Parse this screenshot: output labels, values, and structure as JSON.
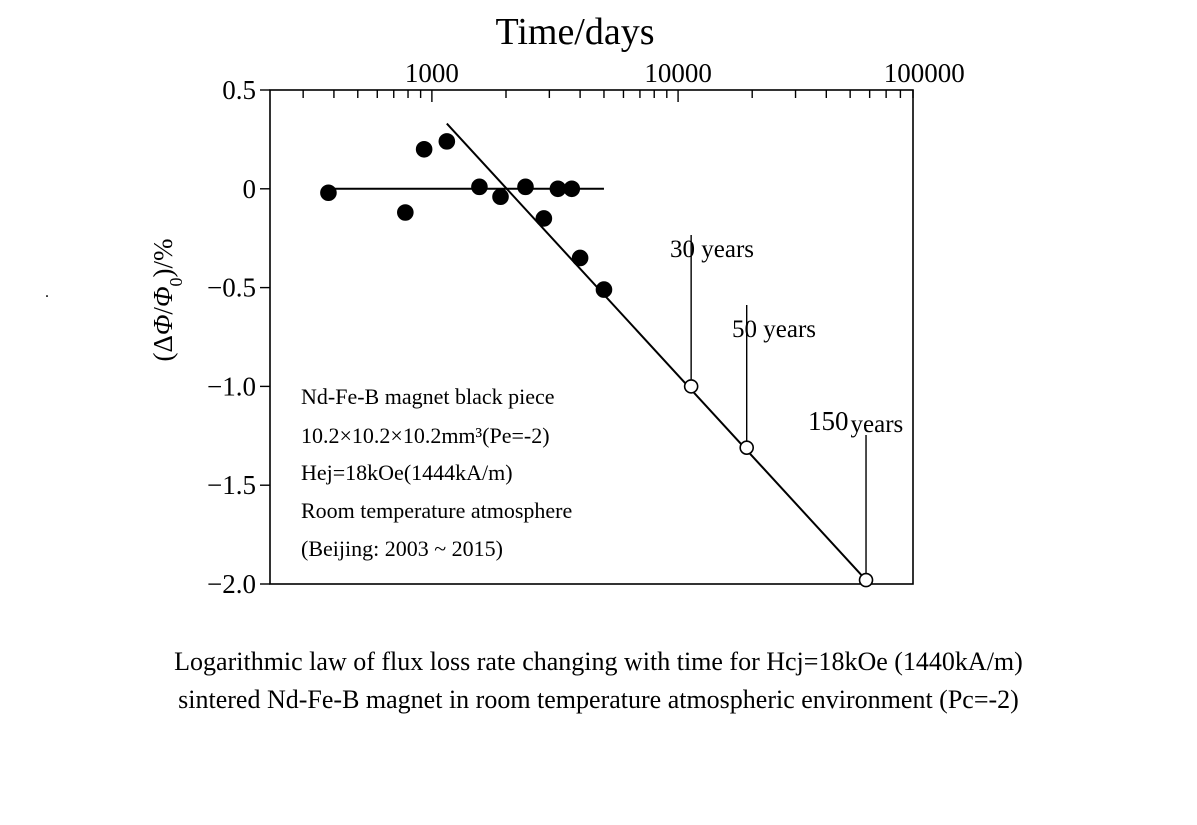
{
  "chart_data": {
    "type": "scatter",
    "title": "Time/days",
    "xlabel": "Time/days",
    "ylabel": "(ΔΦ/Φ0)/%",
    "xscale": "log",
    "xlim": [
      220,
      90000
    ],
    "ylim": [
      -2.0,
      0.5
    ],
    "x_ticks": [
      1000,
      10000,
      100000
    ],
    "x_tick_labels": [
      "1000",
      "10000",
      "100000"
    ],
    "y_ticks": [
      0.5,
      0,
      -0.5,
      -1.0,
      -1.5,
      -2.0
    ],
    "y_tick_labels": [
      "0.5",
      "0",
      "−0.5",
      "−1.0",
      "−1.5",
      "−2.0"
    ],
    "series": [
      {
        "name": "measured",
        "marker": "filled-circle",
        "points": [
          {
            "x": 380,
            "y": -0.02
          },
          {
            "x": 780,
            "y": -0.12
          },
          {
            "x": 930,
            "y": 0.2
          },
          {
            "x": 1150,
            "y": 0.24
          },
          {
            "x": 1560,
            "y": 0.01
          },
          {
            "x": 1900,
            "y": -0.04
          },
          {
            "x": 2400,
            "y": 0.01
          },
          {
            "x": 2850,
            "y": -0.15
          },
          {
            "x": 3250,
            "y": 0.0
          },
          {
            "x": 3700,
            "y": 0.0
          },
          {
            "x": 4000,
            "y": -0.35
          },
          {
            "x": 5000,
            "y": -0.51
          }
        ]
      },
      {
        "name": "predicted",
        "marker": "open-circle",
        "points": [
          {
            "x": 11300,
            "y": -1.0
          },
          {
            "x": 19000,
            "y": -1.31
          },
          {
            "x": 58000,
            "y": -1.98
          }
        ]
      }
    ],
    "lines": [
      {
        "name": "baseline",
        "x": [
          380,
          5000
        ],
        "y": [
          0.0,
          0.0
        ]
      },
      {
        "name": "trend",
        "x": [
          1150,
          58000
        ],
        "y": [
          0.33,
          -1.98
        ]
      }
    ],
    "annotations": [
      {
        "text": "30 years",
        "x": 11300,
        "y": -1.0
      },
      {
        "text": "50 years",
        "x": 19000,
        "y": -1.31
      },
      {
        "label_number": "150",
        "label_unit": "years",
        "x": 58000,
        "y": -1.98
      }
    ],
    "legend_box": [
      "Nd-Fe-B magnet black piece",
      "10.2×10.2×10.2mm³(Pe=-2)",
      "Hej=18kOe(1444kA/m)",
      "Room temperature atmosphere",
      "(Beijing: 2003 ~ 2015)"
    ]
  },
  "caption": {
    "line1": "Logarithmic law of flux loss rate changing with time for Hcj=18kOe (1440kA/m)",
    "line2": "sintered Nd-Fe-B magnet in room temperature atmospheric environment (Pc=-2)"
  },
  "stray_mark": "."
}
